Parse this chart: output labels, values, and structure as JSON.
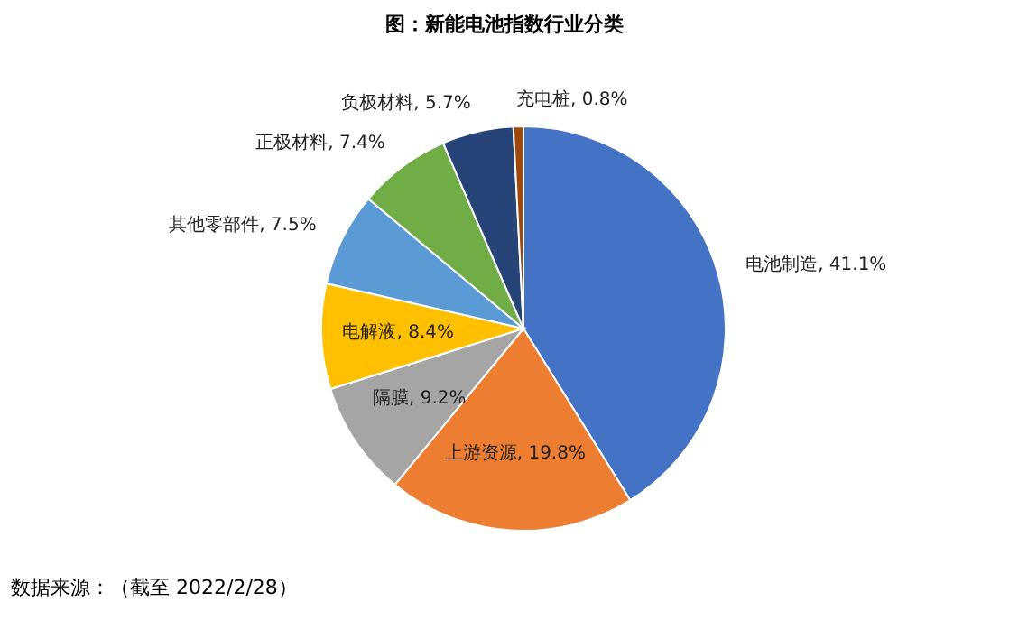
{
  "chart_data": {
    "type": "pie",
    "title": "图：新能电池指数行业分类",
    "categories": [
      "电池制造",
      "上游资源",
      "隔膜",
      "电解液",
      "其他零部件",
      "正极材料",
      "负极材料",
      "充电桩"
    ],
    "values": [
      41.1,
      19.8,
      9.2,
      8.4,
      7.5,
      7.4,
      5.7,
      0.8
    ],
    "value_labels": [
      "41.1%",
      "19.8%",
      "9.2%",
      "8.4%",
      "7.5%",
      "7.4%",
      "5.7%",
      "0.8%"
    ],
    "colors": [
      "#4472c4",
      "#ed7d31",
      "#a5a5a5",
      "#ffc000",
      "#5b9bd5",
      "#70ad47",
      "#264478",
      "#9e480e"
    ],
    "annotations": [
      "数据来源：（截至 2022/2/28）"
    ],
    "legend": false
  }
}
